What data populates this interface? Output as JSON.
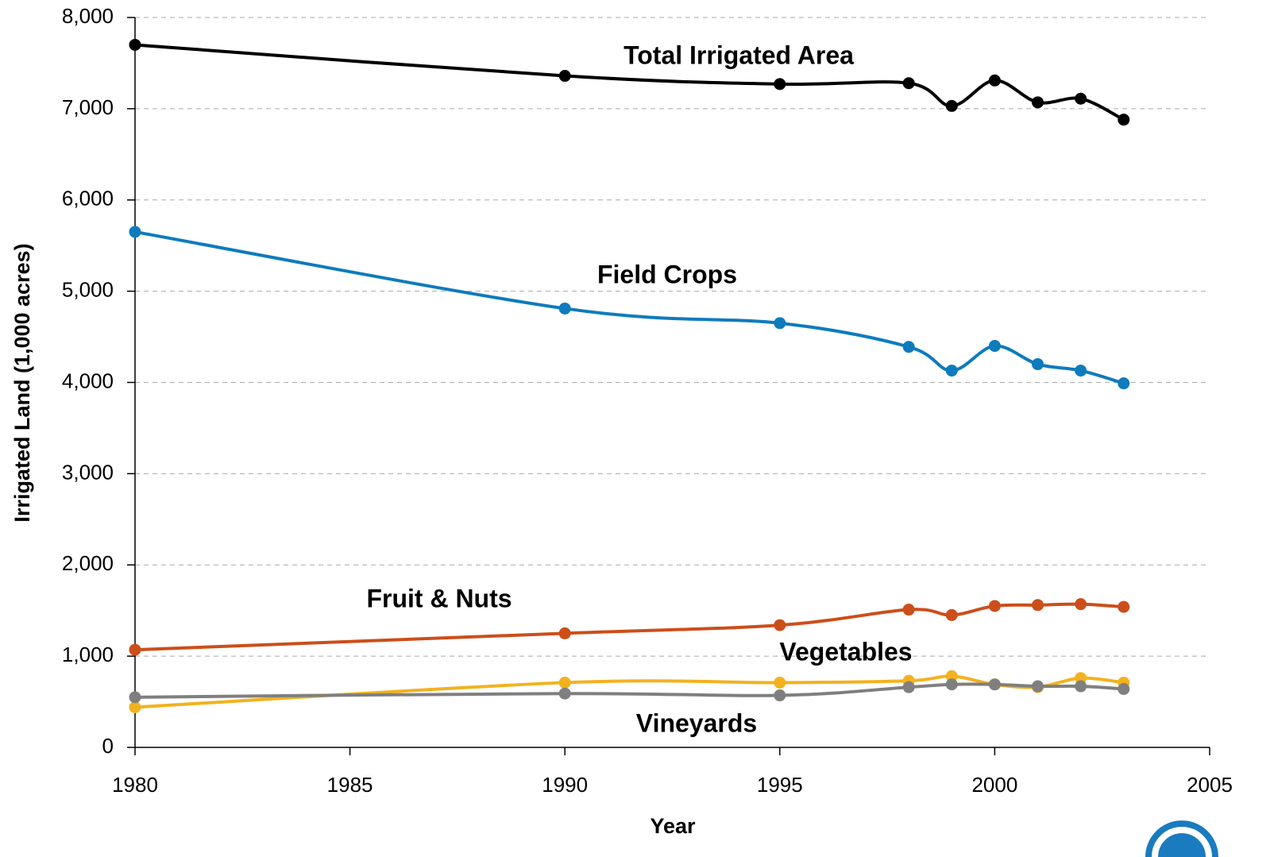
{
  "chart_data": {
    "type": "line",
    "x_label": "Year",
    "y_label": "Irrigated Land (1,000 acres)",
    "x": [
      1980,
      1990,
      1995,
      1998,
      1999,
      2000,
      2001,
      2002,
      2003
    ],
    "series": [
      {
        "name": "Total Irrigated Area",
        "color": "#000000",
        "values": [
          7700,
          7360,
          7270,
          7280,
          7030,
          7310,
          7070,
          7110,
          6880
        ]
      },
      {
        "name": "Field Crops",
        "color": "#0e7bbd",
        "values": [
          5650,
          4810,
          4650,
          4390,
          4130,
          4400,
          4200,
          4130,
          3990
        ]
      },
      {
        "name": "Fruit & Nuts",
        "color": "#cc4e1a",
        "values": [
          1070,
          1250,
          1340,
          1510,
          1450,
          1550,
          1560,
          1570,
          1540
        ]
      },
      {
        "name": "Vegetables",
        "color": "#f2b21f",
        "values": [
          440,
          710,
          710,
          730,
          780,
          690,
          660,
          760,
          710
        ]
      },
      {
        "name": "Vineyards",
        "color": "#7f7f7f",
        "values": [
          550,
          590,
          570,
          660,
          690,
          690,
          670,
          670,
          640
        ]
      }
    ],
    "xlim": [
      1980,
      2005
    ],
    "xticks": [
      1980,
      1985,
      1990,
      1995,
      2000,
      2005
    ],
    "ylim": [
      0,
      8000
    ],
    "yticks": [
      0,
      {
        "value": 1000,
        "label": "1,000"
      },
      {
        "value": 2000,
        "label": "2,000"
      },
      {
        "value": 3000,
        "label": "3,000"
      },
      {
        "value": 4000,
        "label": "4,000"
      },
      {
        "value": 5000,
        "label": "5,000"
      },
      {
        "value": 6000,
        "label": "6,000"
      },
      {
        "value": 7000,
        "label": "7,000"
      },
      {
        "value": 8000,
        "label": "8,000"
      }
    ],
    "grid": true,
    "smooth": true
  }
}
